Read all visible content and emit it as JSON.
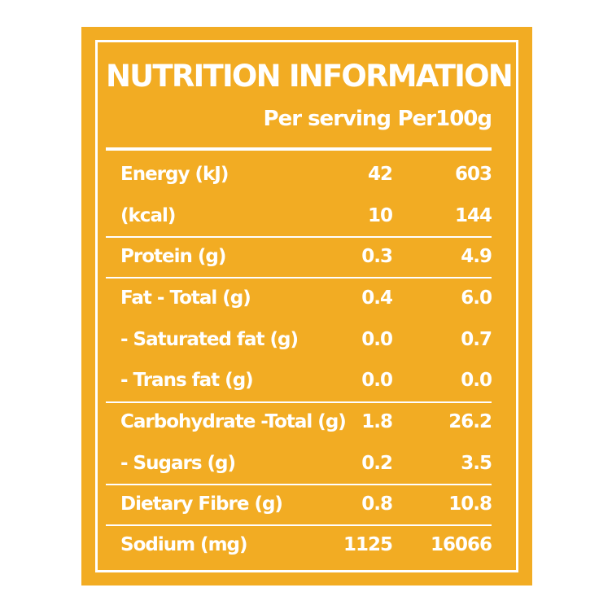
{
  "title": "NUTRITION INFORMATION",
  "columns": {
    "per_serving": "Per serving",
    "per_100g": "Per100g"
  },
  "rows": [
    {
      "name": "Energy (kJ)",
      "per_serving": "42",
      "per_100g": "603"
    },
    {
      "name": "(kcal)",
      "per_serving": "10",
      "per_100g": "144"
    },
    {
      "name": "Protein (g)",
      "per_serving": "0.3",
      "per_100g": "4.9"
    },
    {
      "name": "Fat - Total (g)",
      "per_serving": "0.4",
      "per_100g": "6.0"
    },
    {
      "name": "- Saturated fat (g)",
      "per_serving": "0.0",
      "per_100g": "0.7"
    },
    {
      "name": "- Trans fat (g)",
      "per_serving": "0.0",
      "per_100g": "0.0"
    },
    {
      "name": "Carbohydrate -Total (g)",
      "per_serving": "1.8",
      "per_100g": "26.2"
    },
    {
      "name": "- Sugars (g)",
      "per_serving": "0.2",
      "per_100g": "3.5"
    },
    {
      "name": "Dietary Fibre (g)",
      "per_serving": "0.8",
      "per_100g": "10.8"
    },
    {
      "name": "Sodium (mg)",
      "per_serving": "1125",
      "per_100g": "16066"
    }
  ],
  "colors": {
    "background": "#f2ac23",
    "text": "#ffffff"
  }
}
